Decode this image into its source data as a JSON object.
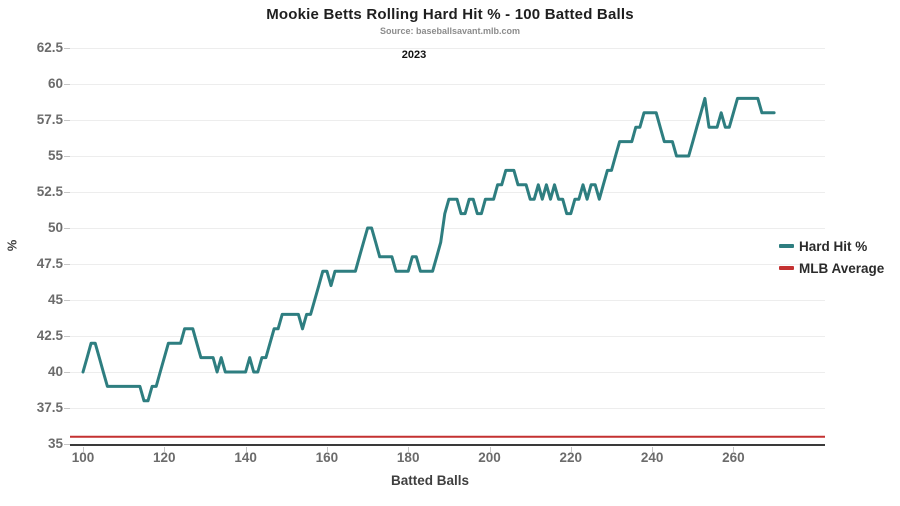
{
  "header": {
    "title": "Mookie Betts Rolling Hard Hit % - 100 Batted Balls",
    "subtitle": "Source: baseballsavant.mlb.com",
    "facet_label": "2023"
  },
  "legend": {
    "items": [
      {
        "label": "Hard Hit %",
        "color": "#2e7e80"
      },
      {
        "label": "MLB Average",
        "color": "#c43131"
      }
    ]
  },
  "chart_data": {
    "type": "line",
    "title": "Mookie Betts Rolling Hard Hit % - 100 Batted Balls",
    "subtitle": "Source: baseballsavant.mlb.com",
    "facet": "2023",
    "xlabel": "Batted Balls",
    "ylabel": "%",
    "x_ticks": [
      100,
      120,
      140,
      160,
      180,
      200,
      220,
      240,
      260
    ],
    "y_ticks": [
      35,
      37.5,
      40,
      42.5,
      45,
      47.5,
      50,
      52.5,
      55,
      57.5,
      60,
      62.5
    ],
    "xlim": [
      97,
      282
    ],
    "ylim": [
      35,
      63
    ],
    "grid": "horizontal-only",
    "legend_position": "right",
    "series": [
      {
        "name": "Hard Hit %",
        "color": "#2e7e80",
        "x_start": 100,
        "x_step": 1,
        "values": [
          40,
          41,
          42,
          42,
          41,
          40,
          39,
          39,
          39,
          39,
          39,
          39,
          39,
          39,
          39,
          38,
          38,
          39,
          39,
          40,
          41,
          42,
          42,
          42,
          42,
          43,
          43,
          43,
          42,
          41,
          41,
          41,
          41,
          40,
          41,
          40,
          40,
          40,
          40,
          40,
          40,
          41,
          40,
          40,
          41,
          41,
          42,
          43,
          43,
          44,
          44,
          44,
          44,
          44,
          43,
          44,
          44,
          45,
          46,
          47,
          47,
          46,
          47,
          47,
          47,
          47,
          47,
          47,
          48,
          49,
          50,
          50,
          49,
          48,
          48,
          48,
          48,
          47,
          47,
          47,
          47,
          48,
          48,
          47,
          47,
          47,
          47,
          48,
          49,
          51,
          52,
          52,
          52,
          51,
          51,
          52,
          52,
          51,
          51,
          52,
          52,
          52,
          53,
          53,
          54,
          54,
          54,
          53,
          53,
          53,
          52,
          52,
          53,
          52,
          53,
          52,
          53,
          52,
          52,
          51,
          51,
          52,
          52,
          53,
          52,
          53,
          53,
          52,
          53,
          54,
          54,
          55,
          56,
          56,
          56,
          56,
          57,
          57,
          58,
          58,
          58,
          58,
          57,
          56,
          56,
          56,
          55,
          55,
          55,
          55,
          56,
          57,
          58,
          59,
          57,
          57,
          57,
          58,
          57,
          57,
          58,
          59,
          59,
          59,
          59,
          59,
          59,
          58,
          58,
          58,
          58
        ]
      },
      {
        "name": "MLB Average",
        "color": "#c43131",
        "style": "horizontal-reference-line",
        "value": 35.5
      }
    ]
  }
}
